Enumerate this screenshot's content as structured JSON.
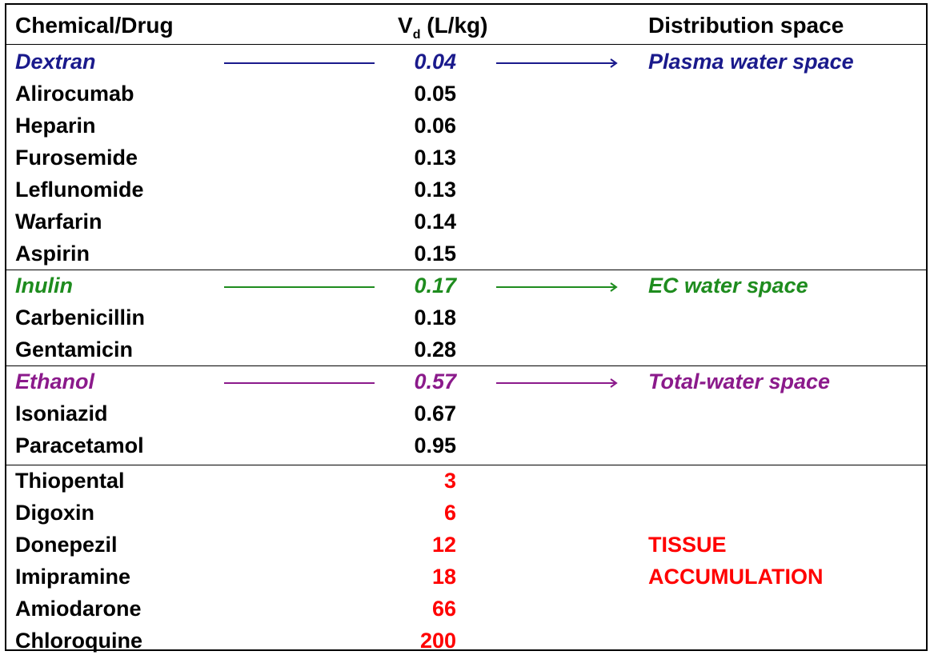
{
  "colors": {
    "plasma": "#1a1a8c",
    "ec": "#1e8c1e",
    "total": "#8b1a8b",
    "tissue": "#ff0000",
    "text": "#000000"
  },
  "header": {
    "col1": "Chemical/Drug",
    "col2_main": "V",
    "col2_sub": "d",
    "col2_rest": " (L/kg)",
    "col3": "Distribution space"
  },
  "groups": [
    {
      "rows": [
        {
          "name": "Dextran",
          "value": "0.04",
          "space": "Plasma water space",
          "marker": true,
          "color": "#1a1a8c"
        },
        {
          "name": "Alirocumab",
          "value": "0.05"
        },
        {
          "name": "Heparin",
          "value": "0.06"
        },
        {
          "name": "Furosemide",
          "value": "0.13"
        },
        {
          "name": "Leflunomide",
          "value": "0.13"
        },
        {
          "name": "Warfarin",
          "value": "0.14"
        },
        {
          "name": "Aspirin",
          "value": "0.15"
        }
      ]
    },
    {
      "rows": [
        {
          "name": "Inulin",
          "value": "0.17",
          "space": "EC water space",
          "marker": true,
          "color": "#1e8c1e"
        },
        {
          "name": "Carbenicillin",
          "value": "0.18"
        },
        {
          "name": "Gentamicin",
          "value": "0.28"
        }
      ]
    },
    {
      "rows": [
        {
          "name": "Ethanol",
          "value": "0.57",
          "space": "Total-water space",
          "marker": true,
          "color": "#8b1a8b"
        },
        {
          "name": "Isoniazid",
          "value": "0.67"
        },
        {
          "name": "Paracetamol",
          "value": "0.95"
        }
      ]
    },
    {
      "rows": [
        {
          "name": "Thiopental",
          "value": "3",
          "valueColor": "#ff0000"
        },
        {
          "name": "Digoxin",
          "value": "6",
          "valueColor": "#ff0000"
        },
        {
          "name": "Donepezil",
          "value": "12",
          "valueColor": "#ff0000",
          "space": "TISSUE",
          "spaceColor": "#ff0000"
        },
        {
          "name": "Imipramine",
          "value": "18",
          "valueColor": "#ff0000",
          "space": "ACCUMULATION",
          "spaceColor": "#ff0000"
        },
        {
          "name": "Amiodarone",
          "value": "66",
          "valueColor": "#ff0000"
        },
        {
          "name": "Chloroquine",
          "value": "200",
          "valueColor": "#ff0000"
        }
      ]
    }
  ]
}
